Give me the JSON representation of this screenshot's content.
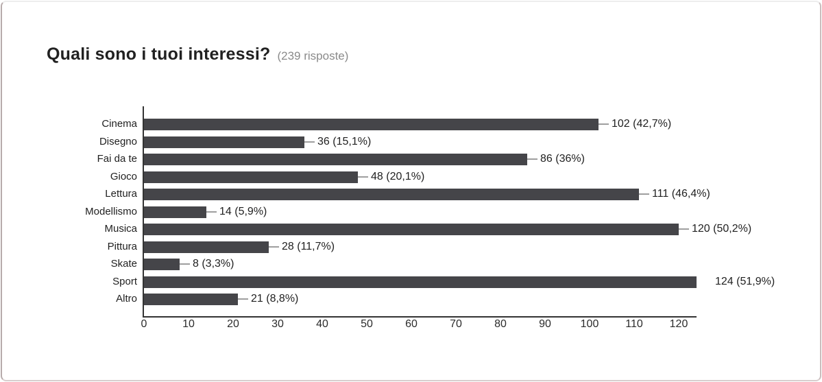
{
  "header": {
    "title": "Quali sono i tuoi interessi?",
    "subtitle": "(239 risposte)"
  },
  "chart_data": {
    "type": "bar",
    "orientation": "horizontal",
    "title": "Quali sono i tuoi interessi?",
    "subtitle": "(239 risposte)",
    "categories": [
      "Cinema",
      "Disegno",
      "Fai da te",
      "Gioco",
      "Lettura",
      "Modellismo",
      "Musica",
      "Pittura",
      "Skate",
      "Sport",
      "Altro"
    ],
    "values": [
      102,
      36,
      86,
      48,
      111,
      14,
      120,
      28,
      8,
      124,
      21
    ],
    "value_labels": [
      "102 (42,7%)",
      "36 (15,1%)",
      "86 (36%)",
      "48 (20,1%)",
      "111 (46,4%)",
      "14 (5,9%)",
      "120 (50,2%)",
      "28 (11,7%)",
      "8 (3,3%)",
      "124 (51,9%)",
      "21 (8,8%)"
    ],
    "x_ticks": [
      0,
      10,
      20,
      30,
      40,
      50,
      60,
      70,
      80,
      90,
      100,
      110,
      120
    ],
    "xlim": [
      0,
      124
    ],
    "xlabel": "",
    "ylabel": "",
    "grid": false,
    "legend": false,
    "colors": {
      "bar": "#454549",
      "axis": "#333333",
      "connector": "#9e9e9e",
      "label_text": "#212121",
      "subtitle_text": "#8a8a8a"
    }
  }
}
